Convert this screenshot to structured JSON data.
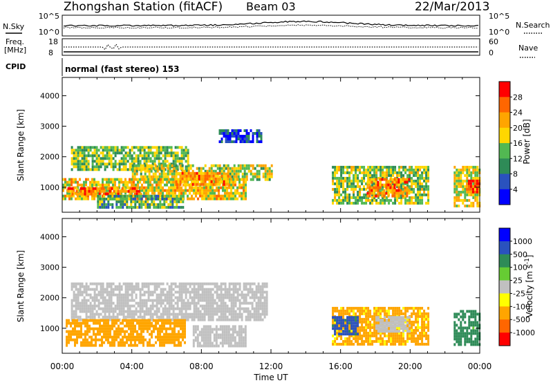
{
  "header": {
    "station": "Zhongshan Station (fitACF)",
    "beam": "Beam 03",
    "date": "22/Mar/2013"
  },
  "top_panels": {
    "nsky_label": "N.Sky",
    "nsky_ticks": [
      "10^5",
      "10^0"
    ],
    "nsearch_label": "N.Search",
    "nsearch_ticks": [
      "10^5",
      "10^0"
    ],
    "freq_label_1": "Freq.",
    "freq_label_2": "[MHz]",
    "freq_ticks": [
      "18",
      "8"
    ],
    "nave_label": "Nave",
    "nave_ticks": [
      "60",
      "0"
    ],
    "cpid_label": "CPID",
    "cpid_text": "normal (fast stereo) 153"
  },
  "colors": {
    "power_scale": [
      "#0000ff",
      "#2a52be",
      "#2e8b57",
      "#52b852",
      "#ffd700",
      "#ffa500",
      "#ff6600",
      "#ff0000"
    ],
    "velocity_scale": [
      "#ff0000",
      "#ff6600",
      "#ffa500",
      "#ffff00",
      "#c0c0c0",
      "#66cc33",
      "#2e8b57",
      "#2a52be",
      "#0000ff"
    ]
  },
  "chart_data": [
    {
      "type": "heatmap",
      "panel": "power",
      "ylabel": "Slant Range [km]",
      "yticks": [
        "4000",
        "3000",
        "2000",
        "1000"
      ],
      "ylim": [
        180,
        4600
      ],
      "xlim_hours": [
        0,
        24
      ],
      "colorbar_label": "Power [dB]",
      "colorbar_ticks": [
        "28",
        "24",
        "20",
        "16",
        "12",
        "8",
        "4"
      ],
      "colorbar_range": [
        0,
        32
      ],
      "regions": [
        {
          "t0": 0.5,
          "t1": 7.2,
          "r0": 1550,
          "r1": 2350,
          "v": 14
        },
        {
          "t0": 4.0,
          "t1": 12.0,
          "r0": 1250,
          "r1": 1750,
          "v": 17
        },
        {
          "t0": 0.0,
          "t1": 10.5,
          "r0": 600,
          "r1": 1300,
          "v": 19
        },
        {
          "t0": 0.3,
          "t1": 4.5,
          "r0": 750,
          "r1": 1000,
          "v": 25
        },
        {
          "t0": 2.0,
          "t1": 7.0,
          "r0": 300,
          "r1": 750,
          "v": 12
        },
        {
          "t0": 6.5,
          "t1": 9.5,
          "r0": 1100,
          "r1": 1500,
          "v": 23
        },
        {
          "t0": 9.0,
          "t1": 11.5,
          "r0": 2500,
          "r1": 2900,
          "v": 6
        },
        {
          "t0": 15.5,
          "t1": 21.0,
          "r0": 500,
          "r1": 1700,
          "v": 15
        },
        {
          "t0": 17.5,
          "t1": 20.0,
          "r0": 750,
          "r1": 1300,
          "v": 24
        },
        {
          "t0": 22.5,
          "t1": 24.0,
          "r0": 400,
          "r1": 1700,
          "v": 18
        },
        {
          "t0": 23.2,
          "t1": 24.0,
          "r0": 800,
          "r1": 1250,
          "v": 27
        }
      ]
    },
    {
      "type": "heatmap",
      "panel": "velocity",
      "ylabel": "Slant Range [km]",
      "yticks": [
        "4000",
        "3000",
        "2000",
        "1000"
      ],
      "ylim": [
        180,
        4600
      ],
      "xlabel": "Time UT",
      "xticks": [
        "00:00",
        "04:00",
        "08:00",
        "12:00",
        "16:00",
        "20:00",
        "00:00"
      ],
      "xlim_hours": [
        0,
        24
      ],
      "colorbar_label": "Velocity [m s",
      "colorbar_superscript": "-1",
      "colorbar_ticks": [
        "1000",
        "500",
        "100",
        "25",
        "-25",
        "-100",
        "-500",
        "-1000"
      ],
      "regions": [
        {
          "t0": 0.5,
          "t1": 11.8,
          "r0": 1300,
          "r1": 2500,
          "v": 0
        },
        {
          "t0": 0.2,
          "t1": 7.0,
          "r0": 450,
          "r1": 1300,
          "v": -300
        },
        {
          "t0": 7.5,
          "t1": 10.5,
          "r0": 400,
          "r1": 1100,
          "v": 0
        },
        {
          "t0": 15.5,
          "t1": 21.0,
          "r0": 500,
          "r1": 1700,
          "v": -150
        },
        {
          "t0": 15.5,
          "t1": 17.0,
          "r0": 800,
          "r1": 1400,
          "v": 700
        },
        {
          "t0": 18.0,
          "t1": 20.0,
          "r0": 900,
          "r1": 1400,
          "v": 0
        },
        {
          "t0": 22.5,
          "t1": 24.0,
          "r0": 500,
          "r1": 1600,
          "v": 200
        }
      ]
    }
  ]
}
